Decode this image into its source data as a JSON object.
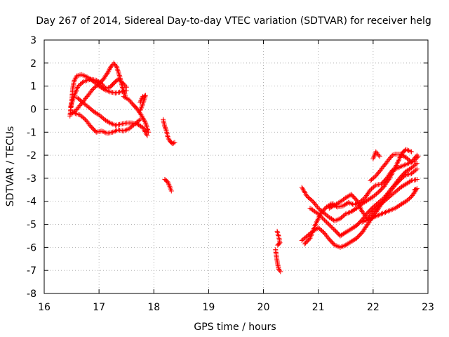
{
  "chart_data": {
    "type": "scatter",
    "title": "Day 267 of 2014, Sidereal Day-to-day VTEC variation (SDTVAR) for receiver helg",
    "xlabel": "GPS time / hours",
    "ylabel": "SDTVAR / TECUs",
    "xlim": [
      16,
      23
    ],
    "ylim": [
      -8,
      3
    ],
    "xticks": [
      "16",
      "17",
      "18",
      "19",
      "20",
      "21",
      "22",
      "23"
    ],
    "yticks": [
      "3",
      "2",
      "1",
      "0",
      "-1",
      "-2",
      "-3",
      "-4",
      "-5",
      "-6",
      "-7",
      "-8"
    ],
    "grid": true,
    "marker": "plus",
    "color": "#ff0000",
    "segments": [
      [
        [
          16.47,
          -0.3
        ],
        [
          16.5,
          0.3
        ],
        [
          16.52,
          0.9
        ],
        [
          16.55,
          1.25
        ],
        [
          16.6,
          1.45
        ],
        [
          16.68,
          1.5
        ],
        [
          16.78,
          1.4
        ],
        [
          16.9,
          1.2
        ],
        [
          17.0,
          1.0
        ],
        [
          17.1,
          0.85
        ],
        [
          17.2,
          0.75
        ],
        [
          17.3,
          0.7
        ],
        [
          17.4,
          0.75
        ],
        [
          17.5,
          0.8
        ]
      ],
      [
        [
          16.48,
          0.1
        ],
        [
          16.55,
          0.6
        ],
        [
          16.62,
          1.0
        ],
        [
          16.72,
          1.2
        ],
        [
          16.85,
          1.3
        ],
        [
          16.95,
          1.25
        ],
        [
          17.05,
          1.1
        ],
        [
          17.12,
          0.9
        ],
        [
          17.2,
          0.95
        ],
        [
          17.28,
          1.15
        ],
        [
          17.35,
          1.3
        ],
        [
          17.45,
          1.1
        ],
        [
          17.5,
          0.95
        ]
      ],
      [
        [
          16.5,
          -0.2
        ],
        [
          16.6,
          0.0
        ],
        [
          16.7,
          0.3
        ],
        [
          16.8,
          0.6
        ],
        [
          16.9,
          0.9
        ],
        [
          17.0,
          1.1
        ],
        [
          17.08,
          1.3
        ],
        [
          17.15,
          1.55
        ],
        [
          17.22,
          1.85
        ],
        [
          17.27,
          2.0
        ],
        [
          17.32,
          1.85
        ],
        [
          17.38,
          1.4
        ],
        [
          17.42,
          1.0
        ],
        [
          17.48,
          0.6
        ]
      ],
      [
        [
          16.52,
          -0.15
        ],
        [
          16.65,
          -0.25
        ],
        [
          16.75,
          -0.45
        ],
        [
          16.85,
          -0.75
        ],
        [
          16.95,
          -1.0
        ],
        [
          17.05,
          -0.95
        ],
        [
          17.15,
          -1.05
        ],
        [
          17.25,
          -1.0
        ],
        [
          17.35,
          -0.9
        ],
        [
          17.45,
          -0.95
        ],
        [
          17.55,
          -0.85
        ],
        [
          17.65,
          -0.65
        ],
        [
          17.75,
          -0.45
        ]
      ],
      [
        [
          16.6,
          0.5
        ],
        [
          16.7,
          0.3
        ],
        [
          16.8,
          0.1
        ],
        [
          16.9,
          -0.1
        ],
        [
          17.0,
          -0.25
        ],
        [
          17.1,
          -0.45
        ],
        [
          17.2,
          -0.6
        ],
        [
          17.3,
          -0.7
        ],
        [
          17.4,
          -0.65
        ],
        [
          17.5,
          -0.6
        ],
        [
          17.6,
          -0.6
        ],
        [
          17.7,
          -0.65
        ],
        [
          17.8,
          -0.8
        ],
        [
          17.88,
          -1.15
        ]
      ],
      [
        [
          17.45,
          0.55
        ],
        [
          17.55,
          0.4
        ],
        [
          17.62,
          0.2
        ],
        [
          17.7,
          0.0
        ],
        [
          17.78,
          -0.3
        ],
        [
          17.85,
          -0.6
        ],
        [
          17.9,
          -1.0
        ]
      ],
      [
        [
          17.75,
          0.3
        ],
        [
          17.8,
          0.55
        ],
        [
          17.85,
          0.6
        ],
        [
          17.78,
          0.1
        ],
        [
          17.75,
          -0.05
        ]
      ],
      [
        [
          18.17,
          -0.45
        ],
        [
          18.2,
          -0.75
        ],
        [
          18.23,
          -0.95
        ],
        [
          18.26,
          -1.25
        ],
        [
          18.3,
          -1.4
        ],
        [
          18.34,
          -1.5
        ],
        [
          18.38,
          -1.45
        ]
      ],
      [
        [
          18.2,
          -3.05
        ],
        [
          18.25,
          -3.15
        ],
        [
          18.28,
          -3.3
        ],
        [
          18.32,
          -3.55
        ]
      ],
      [
        [
          20.22,
          -6.1
        ],
        [
          20.24,
          -6.45
        ],
        [
          20.26,
          -6.75
        ],
        [
          20.28,
          -6.95
        ],
        [
          20.31,
          -7.05
        ]
      ],
      [
        [
          20.25,
          -5.3
        ],
        [
          20.28,
          -5.55
        ],
        [
          20.3,
          -5.8
        ],
        [
          20.26,
          -5.9
        ]
      ],
      [
        [
          20.7,
          -3.4
        ],
        [
          20.8,
          -3.8
        ],
        [
          20.9,
          -4.0
        ],
        [
          21.0,
          -4.3
        ],
        [
          21.1,
          -4.5
        ],
        [
          21.2,
          -4.7
        ],
        [
          21.3,
          -4.85
        ],
        [
          21.4,
          -4.75
        ],
        [
          21.5,
          -4.55
        ],
        [
          21.6,
          -4.45
        ],
        [
          21.7,
          -4.3
        ],
        [
          21.8,
          -4.1
        ],
        [
          21.9,
          -3.95
        ],
        [
          22.0,
          -3.8
        ],
        [
          22.1,
          -3.6
        ],
        [
          22.2,
          -3.35
        ],
        [
          22.3,
          -3.0
        ],
        [
          22.4,
          -2.55
        ],
        [
          22.5,
          -2.05
        ],
        [
          22.55,
          -1.85
        ],
        [
          22.6,
          -1.75
        ],
        [
          22.7,
          -1.85
        ]
      ],
      [
        [
          20.85,
          -4.3
        ],
        [
          21.0,
          -4.55
        ],
        [
          21.15,
          -4.9
        ],
        [
          21.3,
          -5.25
        ],
        [
          21.4,
          -5.5
        ],
        [
          21.5,
          -5.35
        ],
        [
          21.6,
          -5.2
        ],
        [
          21.7,
          -5.05
        ],
        [
          21.8,
          -4.8
        ],
        [
          21.9,
          -4.5
        ],
        [
          22.0,
          -4.25
        ],
        [
          22.1,
          -4.05
        ],
        [
          22.2,
          -3.85
        ],
        [
          22.3,
          -3.55
        ],
        [
          22.4,
          -3.25
        ],
        [
          22.5,
          -2.95
        ],
        [
          22.6,
          -2.7
        ],
        [
          22.7,
          -2.55
        ],
        [
          22.8,
          -2.35
        ]
      ],
      [
        [
          20.7,
          -5.7
        ],
        [
          20.8,
          -5.5
        ],
        [
          20.9,
          -5.3
        ],
        [
          21.0,
          -5.15
        ],
        [
          21.1,
          -5.35
        ],
        [
          21.2,
          -5.65
        ],
        [
          21.3,
          -5.9
        ],
        [
          21.4,
          -6.0
        ],
        [
          21.5,
          -5.9
        ],
        [
          21.6,
          -5.75
        ],
        [
          21.7,
          -5.6
        ],
        [
          21.8,
          -5.35
        ],
        [
          21.9,
          -5.0
        ],
        [
          22.0,
          -4.65
        ],
        [
          22.1,
          -4.3
        ],
        [
          22.2,
          -3.95
        ],
        [
          22.3,
          -3.6
        ],
        [
          22.4,
          -3.3
        ],
        [
          22.5,
          -3.05
        ],
        [
          22.6,
          -2.85
        ],
        [
          22.7,
          -2.8
        ],
        [
          22.8,
          -2.6
        ]
      ],
      [
        [
          20.75,
          -5.85
        ],
        [
          20.85,
          -5.6
        ],
        [
          20.95,
          -5.0
        ],
        [
          21.05,
          -4.5
        ],
        [
          21.15,
          -4.25
        ],
        [
          21.25,
          -4.1
        ],
        [
          21.35,
          -4.25
        ],
        [
          21.45,
          -4.2
        ],
        [
          21.55,
          -4.05
        ],
        [
          21.65,
          -4.15
        ],
        [
          21.75,
          -4.05
        ],
        [
          21.85,
          -3.85
        ],
        [
          21.95,
          -3.5
        ],
        [
          22.05,
          -3.3
        ],
        [
          22.15,
          -3.25
        ],
        [
          22.25,
          -3.0
        ],
        [
          22.35,
          -2.65
        ],
        [
          22.45,
          -2.55
        ],
        [
          22.55,
          -2.45
        ],
        [
          22.65,
          -2.35
        ],
        [
          22.75,
          -2.25
        ],
        [
          22.82,
          -2.05
        ]
      ],
      [
        [
          21.2,
          -4.3
        ],
        [
          21.35,
          -4.1
        ],
        [
          21.5,
          -3.85
        ],
        [
          21.6,
          -3.7
        ],
        [
          21.7,
          -3.95
        ],
        [
          21.8,
          -4.45
        ],
        [
          21.9,
          -4.75
        ],
        [
          22.0,
          -4.45
        ],
        [
          22.1,
          -4.2
        ],
        [
          22.2,
          -4.0
        ],
        [
          22.3,
          -3.8
        ],
        [
          22.4,
          -3.6
        ],
        [
          22.5,
          -3.4
        ],
        [
          22.6,
          -3.25
        ],
        [
          22.7,
          -3.1
        ],
        [
          22.8,
          -3.05
        ]
      ],
      [
        [
          21.8,
          -4.9
        ],
        [
          21.95,
          -4.75
        ],
        [
          22.1,
          -4.6
        ],
        [
          22.25,
          -4.45
        ],
        [
          22.4,
          -4.3
        ],
        [
          22.5,
          -4.15
        ],
        [
          22.6,
          -4.0
        ],
        [
          22.7,
          -3.8
        ],
        [
          22.8,
          -3.45
        ],
        [
          22.75,
          -3.5
        ]
      ],
      [
        [
          21.95,
          -3.1
        ],
        [
          22.05,
          -2.9
        ],
        [
          22.15,
          -2.6
        ],
        [
          22.25,
          -2.3
        ],
        [
          22.35,
          -2.0
        ],
        [
          22.4,
          -1.95
        ],
        [
          22.5,
          -1.95
        ],
        [
          22.6,
          -2.1
        ],
        [
          22.7,
          -2.3
        ],
        [
          22.8,
          -2.0
        ]
      ],
      [
        [
          22.0,
          -2.15
        ],
        [
          22.05,
          -1.85
        ],
        [
          22.12,
          -2.05
        ]
      ]
    ]
  }
}
